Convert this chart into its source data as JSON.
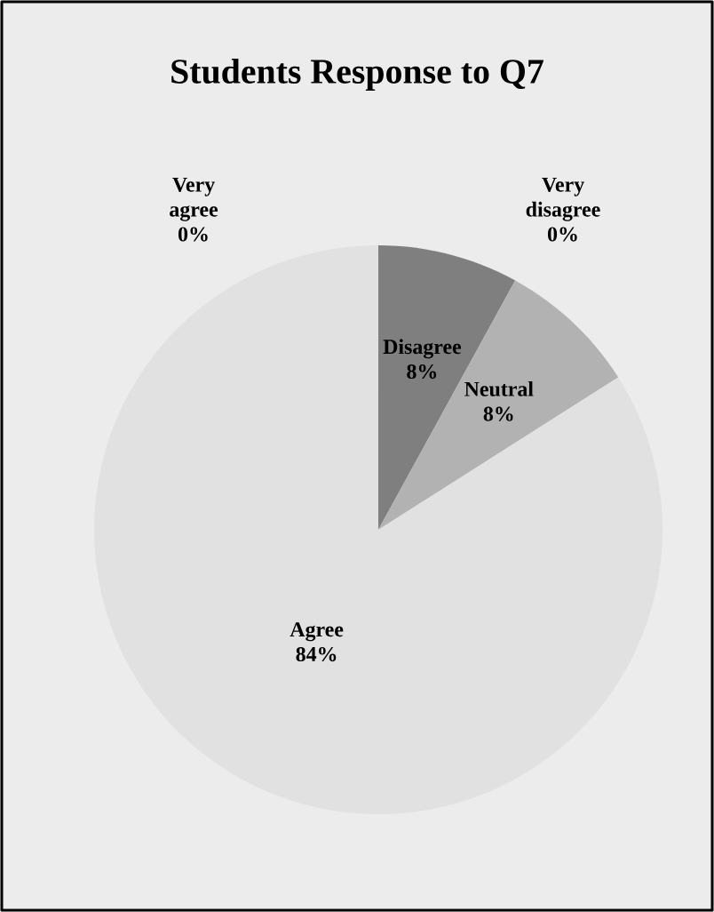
{
  "chart_data": {
    "type": "pie",
    "title": "Students Response to Q7",
    "categories": [
      "Very disagree",
      "Disagree",
      "Neutral",
      "Agree",
      "Very agree"
    ],
    "values": [
      0,
      8,
      8,
      84,
      0
    ],
    "value_labels": [
      "0%",
      "8%",
      "8%",
      "84%",
      "0%"
    ],
    "colors": [
      "#5a5a5a",
      "#7f7f7f",
      "#b2b2b2",
      "#e1e1e1",
      "#f2f2f2"
    ]
  }
}
